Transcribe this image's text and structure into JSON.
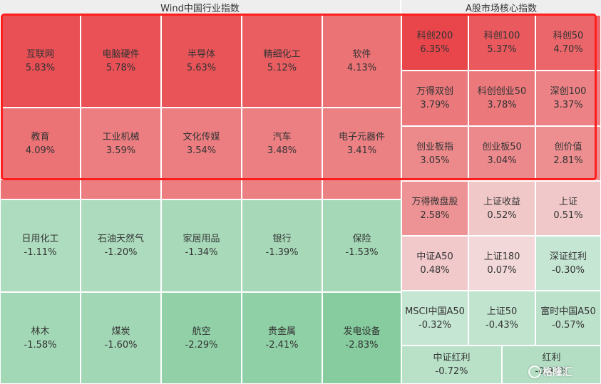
{
  "chart_data": [
    {
      "type": "heatmap",
      "title": "Wind中国行业指数",
      "items": [
        {
          "name": "互联网",
          "value": "5.83%"
        },
        {
          "name": "电脑硬件",
          "value": "5.78%"
        },
        {
          "name": "半导体",
          "value": "5.63%"
        },
        {
          "name": "精细化工",
          "value": "5.12%"
        },
        {
          "name": "软件",
          "value": "4.13%"
        },
        {
          "name": "教育",
          "value": "4.09%"
        },
        {
          "name": "工业机械",
          "value": "3.59%"
        },
        {
          "name": "文化传媒",
          "value": "3.54%"
        },
        {
          "name": "汽车",
          "value": "3.48%"
        },
        {
          "name": "电子元器件",
          "value": "3.41%"
        },
        {
          "name": "日用化工",
          "value": "-1.11%"
        },
        {
          "name": "石油天然气",
          "value": "-1.20%"
        },
        {
          "name": "家居用品",
          "value": "-1.34%"
        },
        {
          "name": "银行",
          "value": "-1.39%"
        },
        {
          "name": "保险",
          "value": "-1.53%"
        },
        {
          "name": "林木",
          "value": "-1.58%"
        },
        {
          "name": "煤炭",
          "value": "-1.60%"
        },
        {
          "name": "航空",
          "value": "-2.29%"
        },
        {
          "name": "贵金属",
          "value": "-2.41%"
        },
        {
          "name": "发电设备",
          "value": "-2.83%"
        }
      ]
    },
    {
      "type": "heatmap",
      "title": "A股市场核心指数",
      "items": [
        {
          "name": "科创200",
          "value": "6.35%"
        },
        {
          "name": "科创100",
          "value": "5.37%"
        },
        {
          "name": "科创50",
          "value": "4.70%"
        },
        {
          "name": "万得双创",
          "value": "3.79%"
        },
        {
          "name": "科创创业50",
          "value": "3.78%"
        },
        {
          "name": "深创100",
          "value": "3.37%"
        },
        {
          "name": "创业板指",
          "value": "3.05%"
        },
        {
          "name": "创业板50",
          "value": "3.04%"
        },
        {
          "name": "创价值",
          "value": "2.81%"
        },
        {
          "name": "万得微盘股",
          "value": "2.58%"
        },
        {
          "name": "上证收益",
          "value": "0.52%"
        },
        {
          "name": "上证",
          "value": "0.51%"
        },
        {
          "name": "中证A50",
          "value": "0.48%"
        },
        {
          "name": "上证180",
          "value": "0.07%"
        },
        {
          "name": "深证红利",
          "value": "-0.30%"
        },
        {
          "name": "MSCI中国A50",
          "value": "-0.32%"
        },
        {
          "name": "上证50",
          "value": "-0.43%"
        },
        {
          "name": "富时中国A50",
          "value": "-0.57%"
        },
        {
          "name": "中证红利",
          "value": "-0.72%"
        },
        {
          "name": "红利",
          "value": "-0.92%"
        }
      ]
    }
  ],
  "colors": {
    "up_strong": "#e8464b",
    "up_weak": "#f2dcdc",
    "down_weak": "#d2ebdd",
    "down_strong": "#86cc9e",
    "highlight_border": "#ff1e1e"
  },
  "watermark": {
    "text": "格隆汇",
    "icon": "logo-circle-icon"
  }
}
